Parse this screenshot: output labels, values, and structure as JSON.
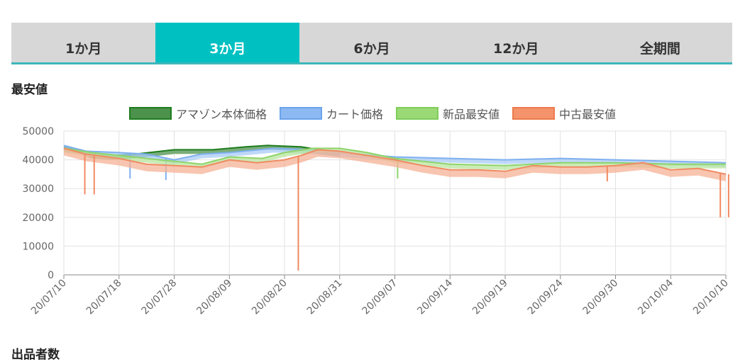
{
  "tabs": [
    {
      "label": "1か月",
      "active": false
    },
    {
      "label": "3か月",
      "active": true
    },
    {
      "label": "6か月",
      "active": false
    },
    {
      "label": "12か月",
      "active": false
    },
    {
      "label": "全期間",
      "active": false
    }
  ],
  "section1_title": "最安値",
  "section2_title": "出品者数",
  "colors": {
    "accent": "#00c0c2",
    "tab_bg": "#d7d7d7"
  },
  "chart_data": {
    "type": "line",
    "title": "",
    "xlabel": "",
    "ylabel": "",
    "ylim": [
      0,
      50000
    ],
    "yticks": [
      0,
      10000,
      20000,
      30000,
      40000,
      50000
    ],
    "xticks": [
      "20/07/10",
      "20/07/18",
      "20/07/28",
      "20/08/09",
      "20/08/20",
      "20/08/31",
      "20/09/07",
      "20/09/14",
      "20/09/19",
      "20/09/24",
      "20/09/30",
      "20/10/04",
      "20/10/10"
    ],
    "grid": true,
    "legend": "top",
    "series": [
      {
        "name": "アマゾン本体価格",
        "color": "#1e7d1e",
        "fill": "#4c924c",
        "points": [
          [
            0,
            44500
          ],
          [
            0.3,
            43500
          ],
          [
            0.5,
            42000
          ],
          [
            0.9,
            41500
          ],
          [
            1.3,
            42000
          ],
          [
            2.0,
            43500
          ],
          [
            2.7,
            43500
          ],
          [
            3.3,
            44500
          ],
          [
            3.7,
            45000
          ],
          [
            4.3,
            44500
          ],
          [
            4.8,
            43000
          ],
          [
            5.0,
            42500
          ]
        ],
        "drops": []
      },
      {
        "name": "カート価格",
        "color": "#7fb0ef",
        "fill": "#a8cbf5",
        "points": [
          [
            0,
            45000
          ],
          [
            0.4,
            43000
          ],
          [
            1.0,
            42500
          ],
          [
            1.5,
            42000
          ],
          [
            2.0,
            40000
          ],
          [
            2.5,
            42000
          ],
          [
            3.0,
            42500
          ],
          [
            3.8,
            44000
          ],
          [
            4.5,
            43500
          ],
          [
            5.0,
            42500
          ],
          [
            6.0,
            41000
          ],
          [
            7.0,
            40500
          ],
          [
            8.0,
            40000
          ],
          [
            9.0,
            40500
          ],
          [
            10.0,
            40000
          ],
          [
            11.0,
            39500
          ],
          [
            12.0,
            39000
          ]
        ],
        "drops": [
          [
            1.2,
            33500
          ],
          [
            1.85,
            33000
          ]
        ]
      },
      {
        "name": "新品最安値",
        "color": "#8ed46a",
        "fill": "#b8e59e",
        "points": [
          [
            0,
            44000
          ],
          [
            0.5,
            42500
          ],
          [
            1.5,
            40500
          ],
          [
            2.0,
            39500
          ],
          [
            2.5,
            38500
          ],
          [
            3.0,
            41000
          ],
          [
            3.6,
            40500
          ],
          [
            4.0,
            42500
          ],
          [
            4.5,
            44000
          ],
          [
            5.0,
            44000
          ],
          [
            5.5,
            42500
          ],
          [
            6.0,
            40500
          ],
          [
            7.0,
            38500
          ],
          [
            8.0,
            38000
          ],
          [
            9.0,
            39000
          ],
          [
            10.0,
            39000
          ],
          [
            11.0,
            38500
          ],
          [
            12.0,
            38500
          ]
        ],
        "drops": [
          [
            6.05,
            33500
          ]
        ]
      },
      {
        "name": "中古最安値",
        "color": "#f08a62",
        "fill": "#f5b196",
        "points": [
          [
            0,
            44000
          ],
          [
            0.4,
            42000
          ],
          [
            1.0,
            40500
          ],
          [
            1.5,
            38500
          ],
          [
            2.0,
            38000
          ],
          [
            2.5,
            37500
          ],
          [
            3.0,
            40000
          ],
          [
            3.5,
            39000
          ],
          [
            4.0,
            40000
          ],
          [
            4.3,
            41500
          ],
          [
            4.6,
            43500
          ],
          [
            5.0,
            43000
          ],
          [
            5.5,
            41500
          ],
          [
            6.0,
            40000
          ],
          [
            6.5,
            38000
          ],
          [
            7.0,
            36500
          ],
          [
            7.5,
            36500
          ],
          [
            8.0,
            36000
          ],
          [
            8.5,
            38000
          ],
          [
            9.0,
            37500
          ],
          [
            9.5,
            37500
          ],
          [
            10.0,
            38000
          ],
          [
            10.5,
            39000
          ],
          [
            11.0,
            36500
          ],
          [
            11.5,
            37000
          ],
          [
            12.0,
            35000
          ]
        ],
        "drops": [
          [
            0.38,
            28000
          ],
          [
            0.55,
            28000
          ],
          [
            4.25,
            1500
          ],
          [
            9.85,
            32500
          ],
          [
            11.9,
            20000
          ],
          [
            12.05,
            20000
          ]
        ]
      }
    ]
  }
}
